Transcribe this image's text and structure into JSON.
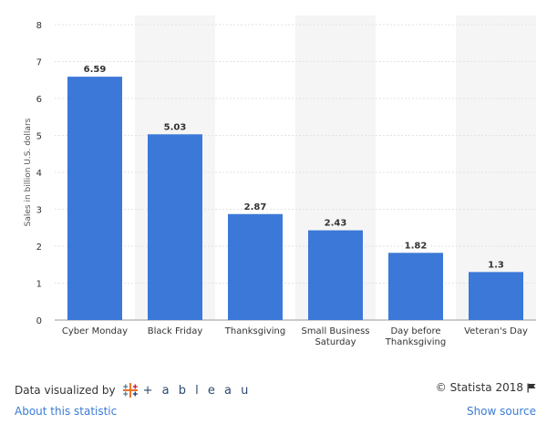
{
  "chart_data": {
    "type": "bar",
    "categories": [
      [
        "Cyber Monday"
      ],
      [
        "Black Friday"
      ],
      [
        "Thanksgiving"
      ],
      [
        "Small Business",
        "Saturday"
      ],
      [
        "Day before",
        "Thanksgiving"
      ],
      [
        "Veteran's Day"
      ]
    ],
    "values": [
      6.59,
      5.03,
      2.87,
      2.43,
      1.82,
      1.3
    ],
    "value_labels": [
      "6.59",
      "5.03",
      "2.87",
      "2.43",
      "1.82",
      "1.3"
    ],
    "ylabel": "Sales in billion U.S. dollars",
    "ylim": [
      0,
      8
    ],
    "yticks": [
      "0",
      "1",
      "2",
      "3",
      "4",
      "5",
      "6",
      "7",
      "8"
    ],
    "grid": true,
    "bar_color": "#3c78d8",
    "band_color": "#f5f5f5"
  },
  "footer": {
    "visualized_by": "Data visualized by",
    "tableau_word": "+ a b l e a u",
    "copyright": "© Statista 2018",
    "about_link": "About this statistic",
    "show_source": "Show source"
  }
}
